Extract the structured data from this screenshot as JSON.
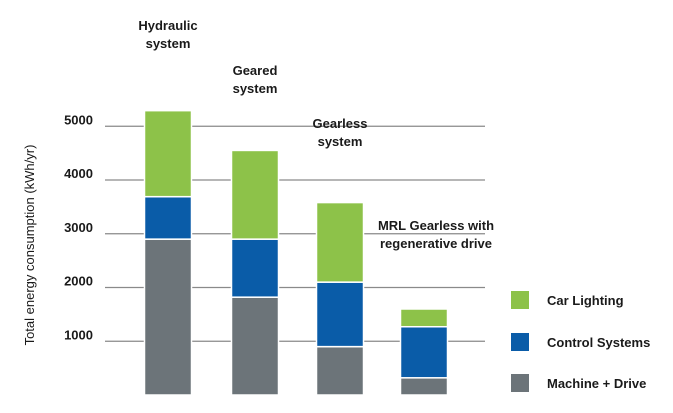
{
  "chart_data": {
    "type": "bar",
    "stacked": true,
    "title": "",
    "xlabel": "",
    "ylabel": "Total energy consumption (kWh/yr)",
    "ylim": [
      0,
      5300
    ],
    "yticks": [
      1000,
      2000,
      3000,
      4000,
      5000
    ],
    "grid": true,
    "legend_position": "bottom-right",
    "categories": [
      "Hydraulic system",
      "Geared system",
      "Gearless system",
      "MRL Gearless with regenerative drive"
    ],
    "category_label_lines": [
      [
        "Hydraulic",
        "system"
      ],
      [
        "Geared",
        "system"
      ],
      [
        "Gearless",
        "system"
      ],
      [
        "MRL Gearless with",
        "regenerative drive"
      ]
    ],
    "series": [
      {
        "name": "Machine + Drive",
        "color": "#6c7479",
        "values": [
          2900,
          1820,
          900,
          320
        ]
      },
      {
        "name": "Control Systems",
        "color": "#0a5ca8",
        "values": [
          790,
          1080,
          1200,
          950
        ]
      },
      {
        "name": "Car Lighting",
        "color": "#8dc249",
        "values": [
          1600,
          1650,
          1480,
          330
        ]
      }
    ],
    "legend_order": [
      "Car Lighting",
      "Control Systems",
      "Machine + Drive"
    ]
  }
}
